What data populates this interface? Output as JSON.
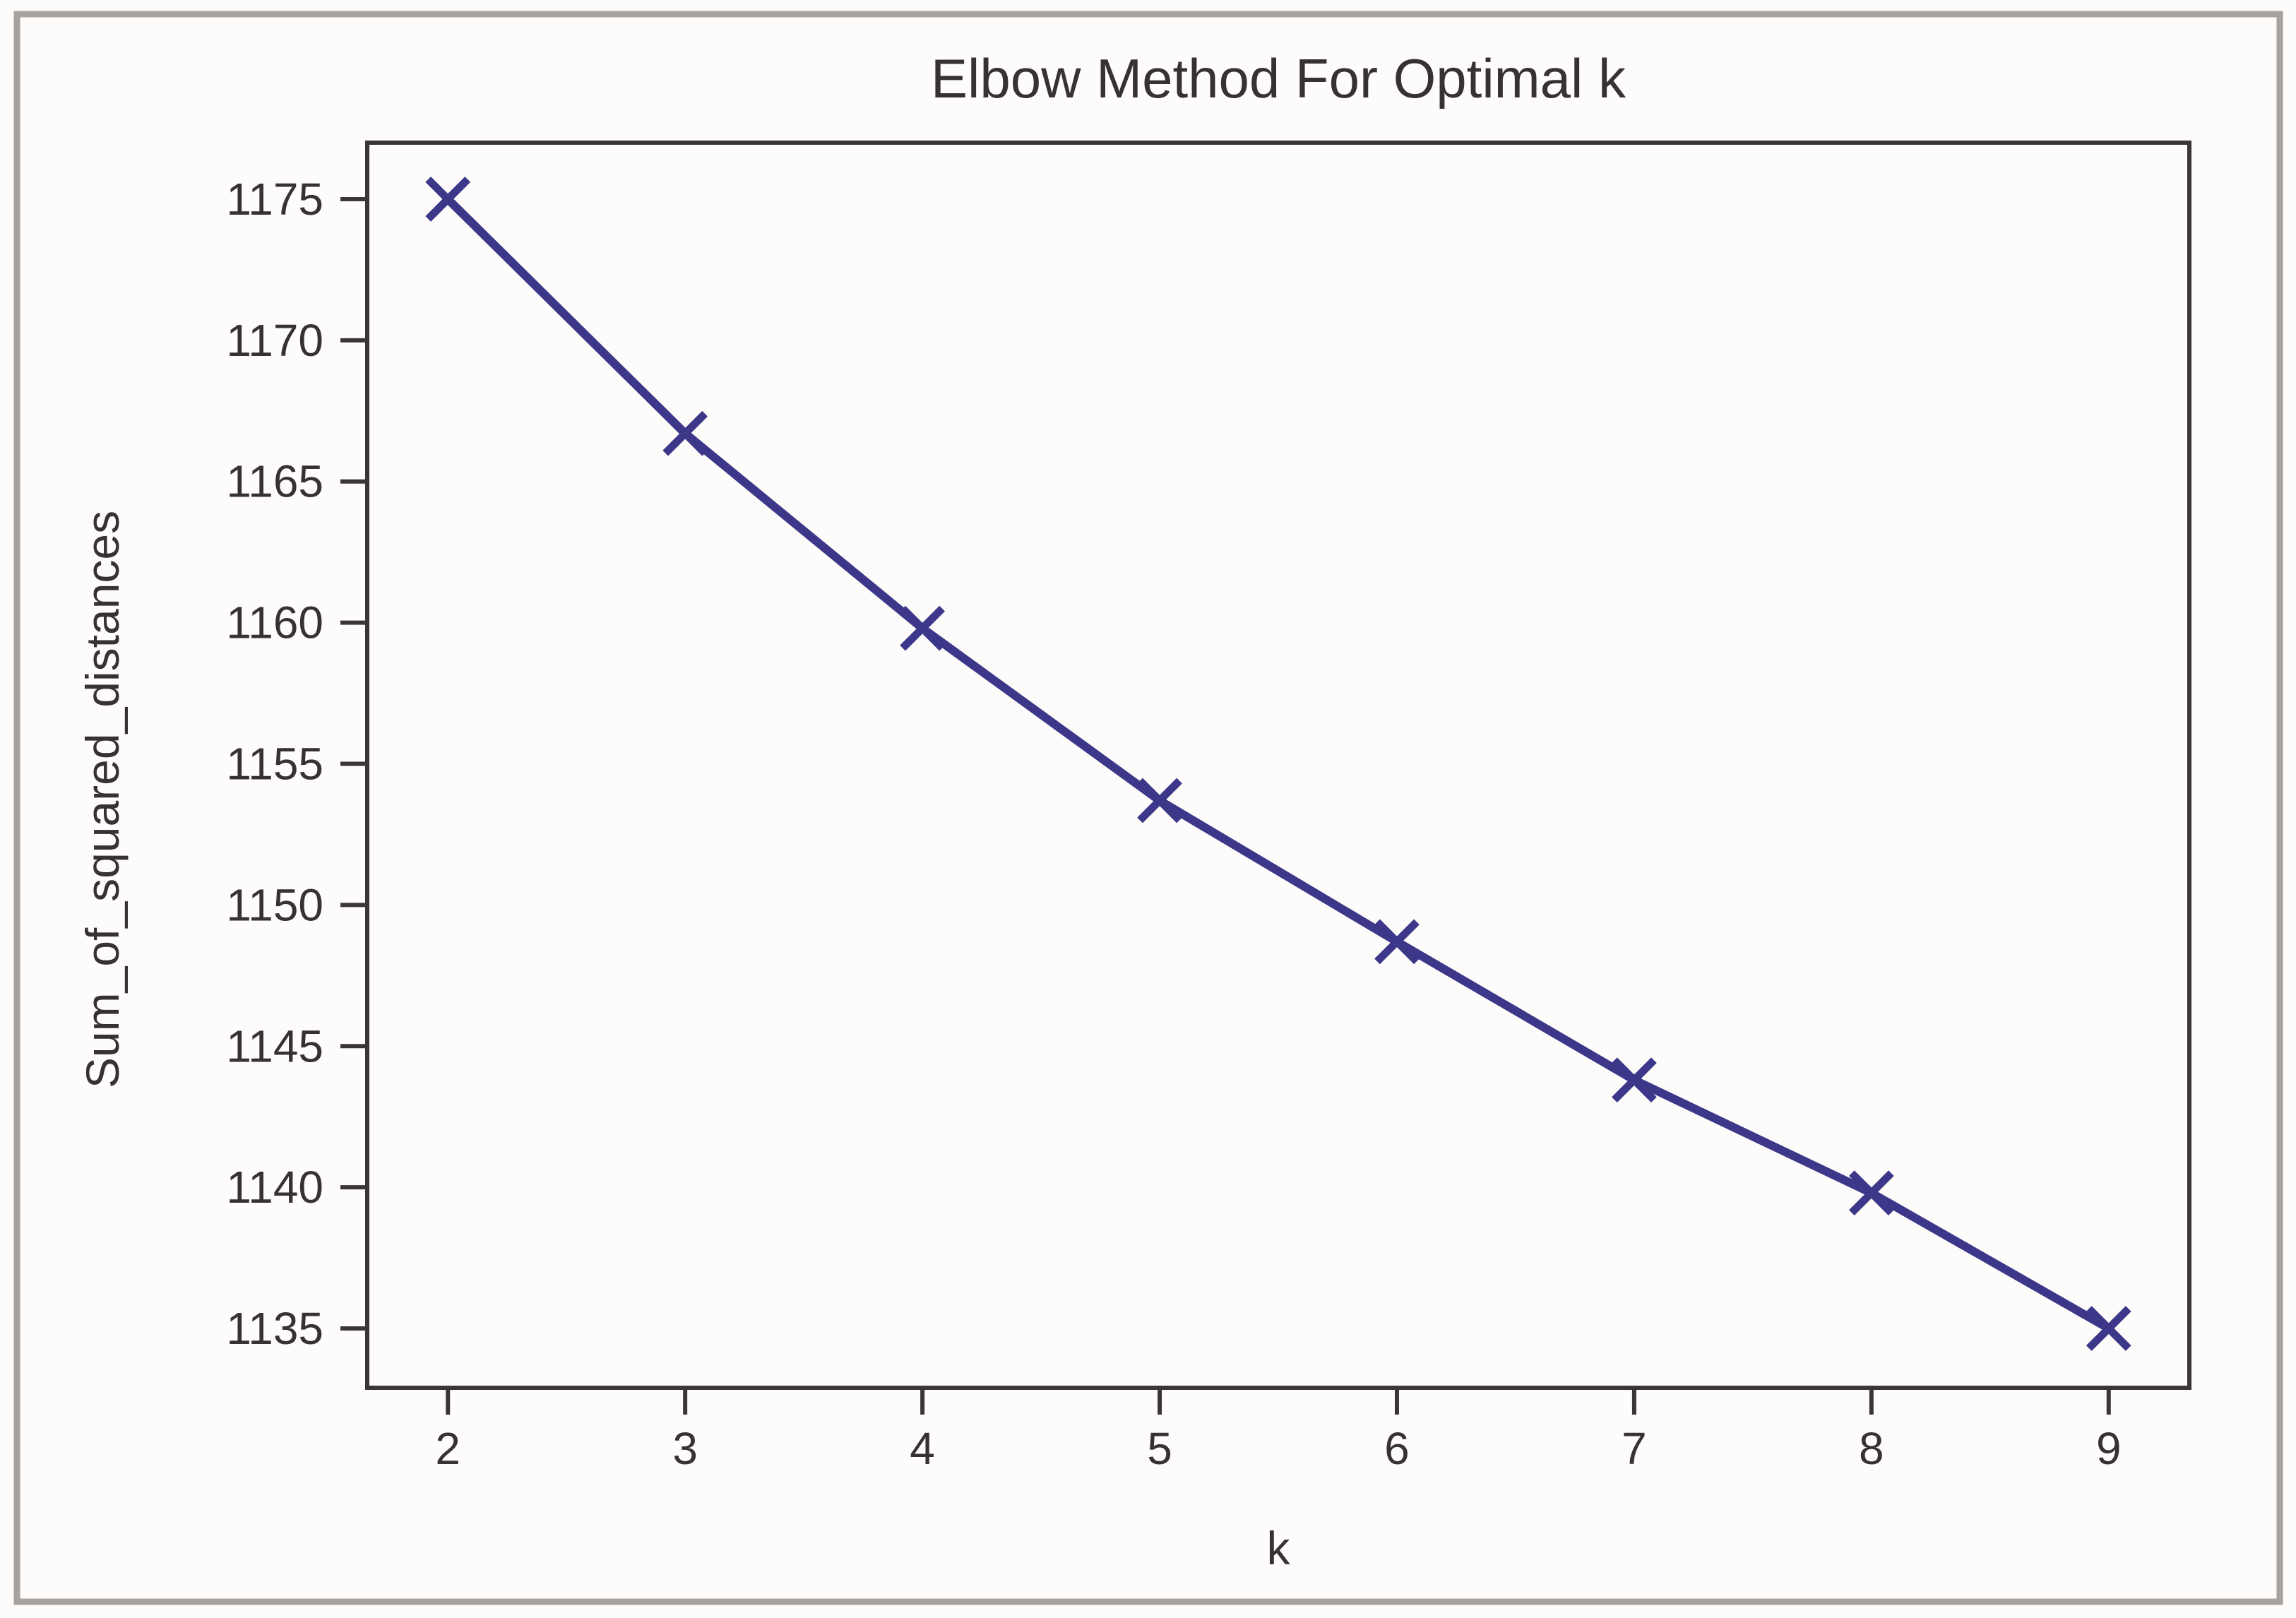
{
  "figure": {
    "background": "#fdfcfb",
    "frame_border_color": "#a5a2a0"
  },
  "colors": {
    "line": "#3d3789",
    "text": "#383132",
    "axis": "#3a3536",
    "frame_border": "#a5a2a0",
    "background": "#fdfcfb"
  },
  "chart_data": {
    "type": "line",
    "title": "Elbow Method For Optimal k",
    "xlabel": "k",
    "ylabel": "Sum_of_squared_distances",
    "x": [
      2,
      3,
      4,
      5,
      6,
      7,
      8,
      9
    ],
    "series": [
      {
        "name": "Sum_of_squared_distances",
        "values": [
          1175.0,
          1166.7,
          1159.8,
          1153.7,
          1148.7,
          1143.8,
          1139.8,
          1135.0
        ]
      }
    ],
    "marker": "x",
    "line_color": "#3d3789",
    "xticks": [
      2,
      3,
      4,
      5,
      6,
      7,
      8,
      9
    ],
    "yticks": [
      1135,
      1140,
      1145,
      1150,
      1155,
      1160,
      1165,
      1170,
      1175
    ],
    "xlim": [
      1.66,
      9.34
    ],
    "ylim": [
      1132.9,
      1177.0
    ],
    "grid": false,
    "legend": null
  }
}
